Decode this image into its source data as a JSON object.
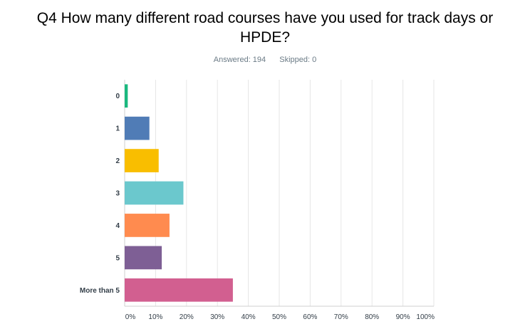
{
  "question": {
    "title": "Q4 How many different road courses have you used for track days or HPDE?"
  },
  "stats": {
    "answered": "Answered: 194",
    "skipped": "Skipped: 0"
  },
  "chart_data": {
    "type": "bar",
    "orientation": "horizontal",
    "categories": [
      "0",
      "1",
      "2",
      "3",
      "4",
      "5",
      "More than 5"
    ],
    "values": [
      1,
      8,
      11,
      19,
      14.5,
      12,
      35
    ],
    "colors": [
      "#1ab87e",
      "#507cb6",
      "#f9be00",
      "#6bc8cd",
      "#ff8b4f",
      "#7e5f95",
      "#d25f90"
    ],
    "xlim": [
      0,
      100
    ],
    "ticks": [
      "0%",
      "10%",
      "20%",
      "30%",
      "40%",
      "50%",
      "60%",
      "70%",
      "80%",
      "90%",
      "100%"
    ],
    "grid": true,
    "xlabel": "",
    "ylabel": ""
  }
}
